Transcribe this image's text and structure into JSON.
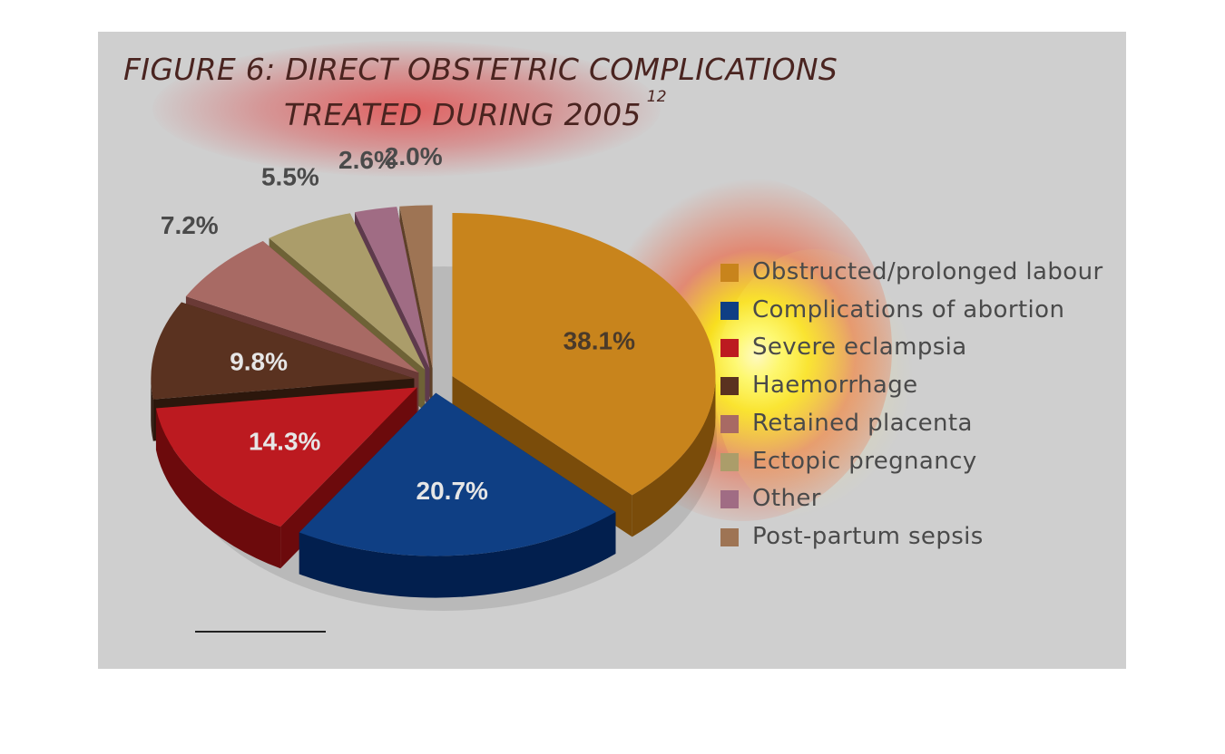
{
  "title": {
    "line1": "FIGURE 6: DIRECT OBSTETRIC COMPLICATIONS",
    "line2": "TREATED DURING 2005",
    "footnote_ref": "12"
  },
  "chart_data": {
    "type": "pie",
    "title": "FIGURE 6: DIRECT OBSTETRIC COMPLICATIONS TREATED DURING 2005",
    "slices": [
      {
        "label": "Obstructed/prolonged labour",
        "value": 38.1,
        "value_label": "38.1%",
        "color": "#c8841c",
        "side_color": "#7a4c0a",
        "label_color": "#4a3a2a"
      },
      {
        "label": "Complications of abortion",
        "value": 20.7,
        "value_label": "20.7%",
        "color": "#0f3f84",
        "side_color": "#021f4e",
        "label_color": "#e6e6e6"
      },
      {
        "label": "Severe eclampsia",
        "value": 14.3,
        "value_label": "14.3%",
        "color": "#bc1a20",
        "side_color": "#6c0a0c",
        "label_color": "#e6e6e6"
      },
      {
        "label": "Haemorrhage",
        "value": 9.8,
        "value_label": "9.8%",
        "color": "#5a3220",
        "side_color": "#2c170c",
        "label_color": "#e6e6e6"
      },
      {
        "label": "Retained placenta",
        "value": 7.2,
        "value_label": "7.2%",
        "color": "#a86a64",
        "side_color": "#6a3a36",
        "label_color": "#4a4a4a"
      },
      {
        "label": "Ectopic pregnancy",
        "value": 5.5,
        "value_label": "5.5%",
        "color": "#ab9d6a",
        "side_color": "#6e6236",
        "label_color": "#4a4a4a"
      },
      {
        "label": "Other",
        "value": 2.6,
        "value_label": "2.6%",
        "color": "#a06c84",
        "side_color": "#5e3a4c",
        "label_color": "#4a4a4a"
      },
      {
        "label": "Post-partum sepsis",
        "value": 2.0,
        "value_label": "2.0%",
        "color": "#9e7454",
        "side_color": "#5e4028",
        "label_color": "#4a4a4a"
      }
    ],
    "legend_position": "right"
  },
  "legend": {
    "items": [
      {
        "label": "Obstructed/prolonged labour",
        "color": "#c8841c"
      },
      {
        "label": "Complications of abortion",
        "color": "#0f3f84"
      },
      {
        "label": "Severe eclampsia",
        "color": "#bc1a20"
      },
      {
        "label": "Haemorrhage",
        "color": "#5a3220"
      },
      {
        "label": "Retained placenta",
        "color": "#a86a64"
      },
      {
        "label": "Ectopic pregnancy",
        "color": "#ab9d6a"
      },
      {
        "label": "Other",
        "color": "#a06c84"
      },
      {
        "label": "Post-partum sepsis",
        "color": "#9e7454"
      }
    ]
  }
}
